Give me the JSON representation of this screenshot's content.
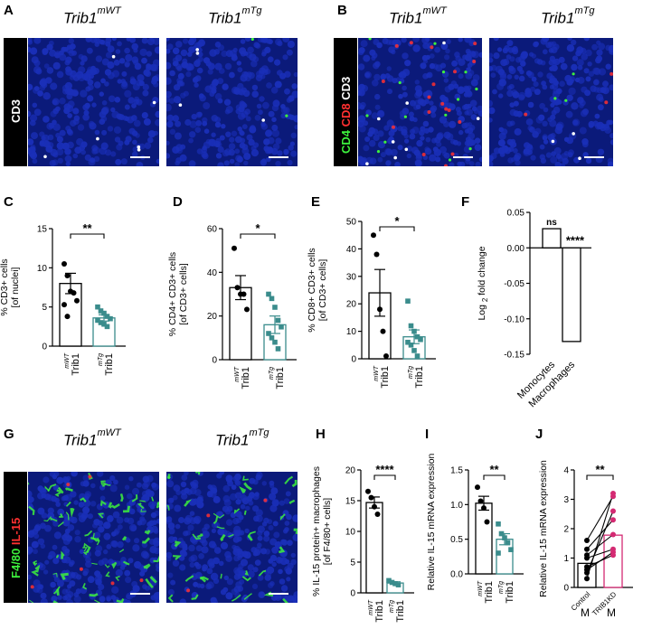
{
  "figure": {
    "panel_letters": [
      "A",
      "B",
      "C",
      "D",
      "E",
      "F",
      "G",
      "H",
      "I",
      "J"
    ],
    "genotype_wt": "Trib1",
    "genotype_wt_sup": "mWT",
    "genotype_tg": "Trib1",
    "genotype_tg_sup": "mTg",
    "stains": {
      "a": "CD3",
      "b_cd4": "CD4",
      "b_cd8": "CD8",
      "b_cd3": "CD3",
      "g_f480": "F4/80",
      "g_il15": "IL-15"
    },
    "colors": {
      "nuclei": "#1a2fb8",
      "green": "#3df03d",
      "red": "#ff3030",
      "teal": "#3a8c8c",
      "pink": "#d42a72"
    }
  },
  "chart_data": [
    {
      "panel": "C",
      "type": "bar",
      "ylabel": "% CD3+ cells [of nuclei]",
      "ylim": [
        0,
        15
      ],
      "yticks": [
        0,
        5,
        10,
        15
      ],
      "categories": [
        "Trib1 mWT",
        "Trib1 mTg"
      ],
      "tick_main": [
        "Trib1",
        "Trib1"
      ],
      "tick_sup": [
        "mWT",
        "mTg"
      ],
      "values": [
        8.0,
        3.6
      ],
      "sem": [
        1.3,
        0.4
      ],
      "points": [
        [
          10.5,
          9.0,
          7.0,
          6.8,
          5.8,
          5.3,
          3.8
        ],
        [
          5.0,
          4.5,
          4.2,
          3.8,
          3.5,
          3.3,
          3.0,
          2.8,
          2.5
        ]
      ],
      "significance": "**"
    },
    {
      "panel": "D",
      "type": "bar",
      "ylabel": "% CD4+ CD3+ cells [of CD3+ cells]",
      "ylim": [
        0,
        60
      ],
      "yticks": [
        0,
        20,
        40,
        60
      ],
      "categories": [
        "Trib1 mWT",
        "Trib1 mTg"
      ],
      "tick_main": [
        "Trib1",
        "Trib1"
      ],
      "tick_sup": [
        "mWT",
        "mTg"
      ],
      "values": [
        33,
        16
      ],
      "sem": [
        5.5,
        4.0
      ],
      "points": [
        [
          51,
          33,
          30,
          30,
          23
        ],
        [
          30,
          28,
          24,
          18,
          15,
          12,
          10,
          8,
          5
        ]
      ],
      "significance": "*"
    },
    {
      "panel": "E",
      "type": "bar",
      "ylabel": "% CD8+ CD3+ cells [of CD3+ cells]",
      "ylim": [
        0,
        50
      ],
      "yticks": [
        0,
        10,
        20,
        30,
        40,
        50
      ],
      "categories": [
        "Trib1 mWT",
        "Trib1 mTg"
      ],
      "tick_main": [
        "Trib1",
        "Trib1"
      ],
      "tick_sup": [
        "mWT",
        "mTg"
      ],
      "values": [
        24,
        8
      ],
      "sem": [
        8.5,
        2.5
      ],
      "points": [
        [
          45,
          38,
          18,
          10,
          1
        ],
        [
          21,
          12,
          10,
          8,
          7,
          6,
          5,
          3,
          1
        ]
      ],
      "significance": "*"
    },
    {
      "panel": "F",
      "type": "bar",
      "ylabel": "Log 2 fold change",
      "ylabel_main": "Log",
      "ylabel_sub": "2",
      "ylabel_rest": "fold change",
      "ylim": [
        -0.15,
        0.05
      ],
      "yticks": [
        -0.15,
        -0.1,
        -0.05,
        0.0,
        0.05
      ],
      "ytick_labels": [
        "-0.15",
        "-0.10",
        "-0.05",
        "0.00",
        "0.05"
      ],
      "categories": [
        "Monocytes",
        "Macrophages"
      ],
      "values": [
        0.027,
        -0.132
      ],
      "significance": [
        "ns",
        "****"
      ]
    },
    {
      "panel": "H",
      "type": "bar",
      "ylabel": "% IL-15 protein+ macrophages [of F4/80+ cells]",
      "ylim": [
        0,
        20
      ],
      "yticks": [
        0,
        5,
        10,
        15,
        20
      ],
      "categories": [
        "Trib1 mWT",
        "Trib1 mTg"
      ],
      "tick_main": [
        "Trib1",
        "Trib1"
      ],
      "tick_sup": [
        "mWT",
        "mTg"
      ],
      "values": [
        14.7,
        1.6
      ],
      "sem": [
        0.9,
        0.2
      ],
      "points": [
        [
          16.5,
          15.5,
          14.0,
          12.8
        ],
        [
          2.0,
          1.7,
          1.5,
          1.3
        ]
      ],
      "significance": "****"
    },
    {
      "panel": "I",
      "type": "bar",
      "ylabel": "Relative IL-15 mRNA expression",
      "ylim": [
        0,
        1.5
      ],
      "yticks": [
        0,
        0.5,
        1.0,
        1.5
      ],
      "ytick_labels": [
        "0.0",
        "0.5",
        "1.0",
        "1.5"
      ],
      "categories": [
        "Trib1 mWT",
        "Trib1 mTg"
      ],
      "tick_main": [
        "Trib1",
        "Trib1"
      ],
      "tick_sup": [
        "mWT",
        "mTg"
      ],
      "values": [
        1.02,
        0.5
      ],
      "sem": [
        0.1,
        0.08
      ],
      "points": [
        [
          1.25,
          1.05,
          0.95,
          0.75
        ],
        [
          0.72,
          0.58,
          0.52,
          0.45,
          0.35,
          0.3
        ]
      ],
      "significance": "**"
    },
    {
      "panel": "J",
      "type": "bar",
      "ylabel": "Relative IL-15 mRNA expression",
      "ylim": [
        0,
        4
      ],
      "yticks": [
        0,
        1,
        2,
        3,
        4
      ],
      "categories": [
        "Control M",
        "TRIB1KD M"
      ],
      "tick_main": [
        "Control",
        "TRIB1KD"
      ],
      "tick_under": [
        "M",
        "M"
      ],
      "values": [
        0.82,
        1.78
      ],
      "paired": [
        [
          0.3,
          3.2
        ],
        [
          0.5,
          2.6
        ],
        [
          0.6,
          1.2
        ],
        [
          0.7,
          1.1
        ],
        [
          1.0,
          1.3
        ],
        [
          1.1,
          1.8
        ],
        [
          1.3,
          2.3
        ],
        [
          1.6,
          3.1
        ]
      ],
      "significance": "**"
    }
  ]
}
